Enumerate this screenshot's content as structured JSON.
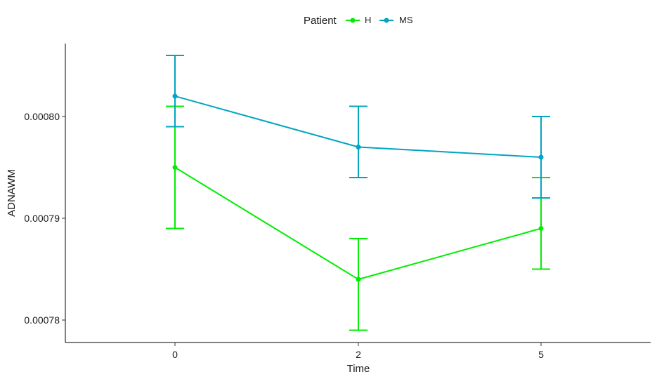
{
  "chart_data": {
    "type": "line",
    "legend": {
      "title": "Patient",
      "position": "top"
    },
    "xlabel": "Time",
    "ylabel": "ADNAWM",
    "categories": [
      "0",
      "2",
      "5"
    ],
    "y_ticks": [
      "0.00078",
      "0.00079",
      "0.00080"
    ],
    "ylim": [
      0.000776,
      0.000805
    ],
    "grid": false,
    "series": [
      {
        "name": "H",
        "color": "#00ee00",
        "values": [
          0.000795,
          0.000784,
          0.000789
        ],
        "lower": [
          0.000789,
          0.000779,
          0.000785
        ],
        "upper": [
          0.000801,
          0.000788,
          0.000794
        ]
      },
      {
        "name": "MS",
        "color": "#00a5c0",
        "values": [
          0.000802,
          0.000797,
          0.000796
        ],
        "lower": [
          0.000799,
          0.000794,
          0.000792
        ],
        "upper": [
          0.000806,
          0.000801,
          0.0008
        ]
      }
    ]
  }
}
